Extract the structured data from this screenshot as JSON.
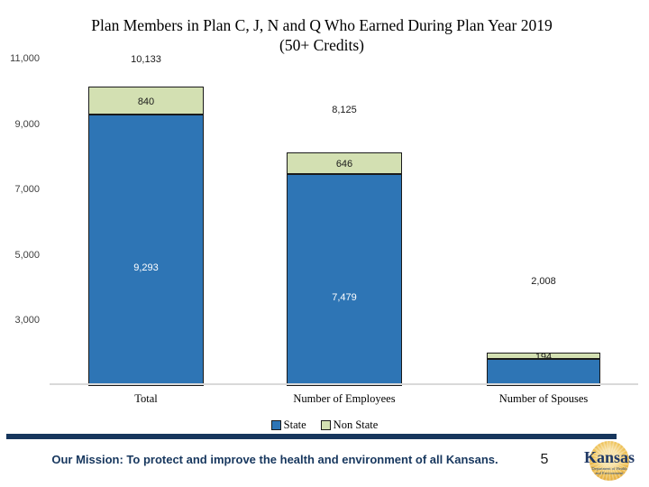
{
  "slide": {
    "title_line1": "Plan Members in Plan C, J, N and Q Who Earned During Plan Year 2019",
    "title_line2": "(50+ Credits)",
    "footer": {
      "mission": "Our Mission: To protect and improve the health and environment of all Kansans.",
      "page_number": "5",
      "logo": {
        "word": "Kansas",
        "sub_line1": "Department of Health",
        "sub_line2": "and Environment"
      }
    }
  },
  "chart_data": {
    "type": "bar",
    "stacked": true,
    "title": "Plan Members in Plan C, J, N and Q Who Earned During Plan Year 2019 (50+ Credits)",
    "categories": [
      "Total",
      "Number of Employees",
      "Number of Spouses"
    ],
    "series": [
      {
        "name": "State",
        "color": "#2e75b5",
        "values": [
          9293,
          7479,
          1814
        ]
      },
      {
        "name": "Non State",
        "color": "#d3e0b2",
        "values": [
          840,
          646,
          194
        ]
      }
    ],
    "totals": [
      10133,
      8125,
      2008
    ],
    "labels": {
      "totals": [
        "10,133",
        "8,125",
        "2,008"
      ],
      "state": [
        "9,293",
        "7,479",
        "1,814"
      ],
      "non_state": [
        "840",
        "646",
        "194"
      ]
    },
    "y_ticks": [
      "11,000",
      "9,000",
      "7,000",
      "5,000",
      "3,000"
    ],
    "y_tick_values": [
      11000,
      9000,
      7000,
      5000,
      3000
    ],
    "ylim": [
      1000,
      11000
    ],
    "grid": false,
    "legend": [
      "State",
      "Non State"
    ],
    "legend_position": "bottom",
    "axis_cropped_at_bottom": true,
    "colors": {
      "state_fill": "#2e75b5",
      "non_state_fill": "#d3e0b2",
      "segment_border": "#1a1a1a",
      "axis_line": "#d9d9d9",
      "navy_bar": "#17365d",
      "mission_text": "#17375e",
      "logo_gold": "#e9b945",
      "logo_navy": "#1f3864"
    }
  }
}
